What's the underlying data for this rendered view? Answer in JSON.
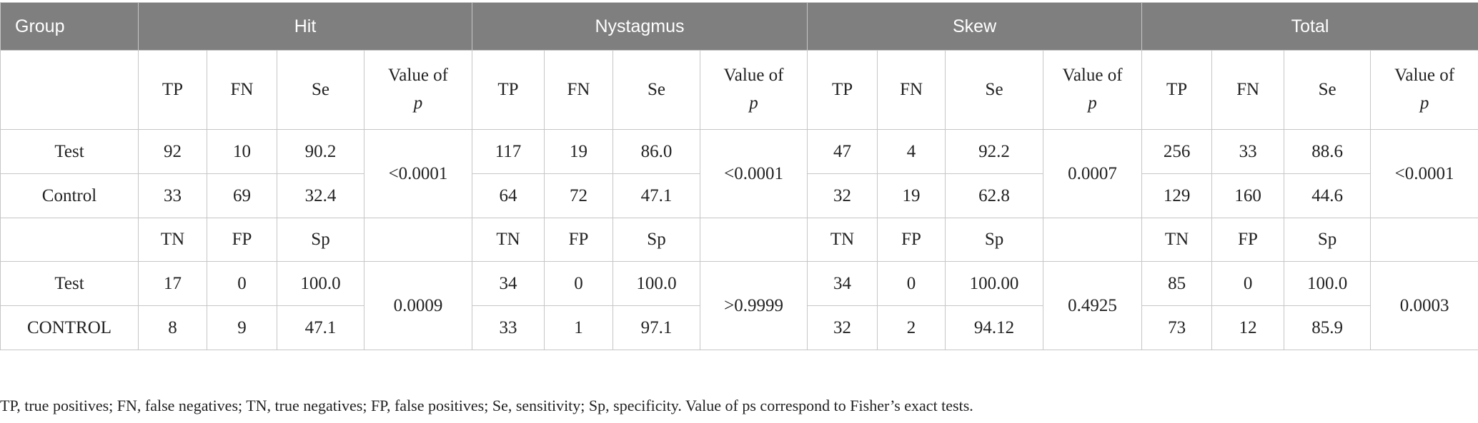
{
  "table": {
    "group_header": "Group",
    "sections": [
      "Hit",
      "Nystagmus",
      "Skew",
      "Total"
    ],
    "pvalue_label": "Value of",
    "pvalue_letter": "p",
    "sensitivity_columns": [
      "TP",
      "FN",
      "Se"
    ],
    "specificity_columns": [
      "TN",
      "FP",
      "Sp"
    ],
    "sensitivity_rows": [
      {
        "label": "Test",
        "values": [
          "92",
          "10",
          "90.2",
          "117",
          "19",
          "86.0",
          "47",
          "4",
          "92.2",
          "256",
          "33",
          "88.6"
        ]
      },
      {
        "label": "Control",
        "values": [
          "33",
          "69",
          "32.4",
          "64",
          "72",
          "47.1",
          "32",
          "19",
          "62.8",
          "129",
          "160",
          "44.6"
        ]
      }
    ],
    "sensitivity_pvalues": [
      "<0.0001",
      "<0.0001",
      "0.0007",
      "<0.0001"
    ],
    "specificity_rows": [
      {
        "label": "Test",
        "values": [
          "17",
          "0",
          "100.0",
          "34",
          "0",
          "100.0",
          "34",
          "0",
          "100.00",
          "85",
          "0",
          "100.0"
        ]
      },
      {
        "label": "CONTROL",
        "values": [
          "8",
          "9",
          "47.1",
          "33",
          "1",
          "97.1",
          "32",
          "2",
          "94.12",
          "73",
          "12",
          "85.9"
        ]
      }
    ],
    "specificity_pvalues": [
      "0.0009",
      ">0.9999",
      "0.4925",
      "0.0003"
    ]
  },
  "footnote": "TP, true positives; FN, false negatives; TN, true negatives; FP, false positives; Se, sensitivity; Sp, specificity. Value of ps correspond to Fisher’s exact tests."
}
